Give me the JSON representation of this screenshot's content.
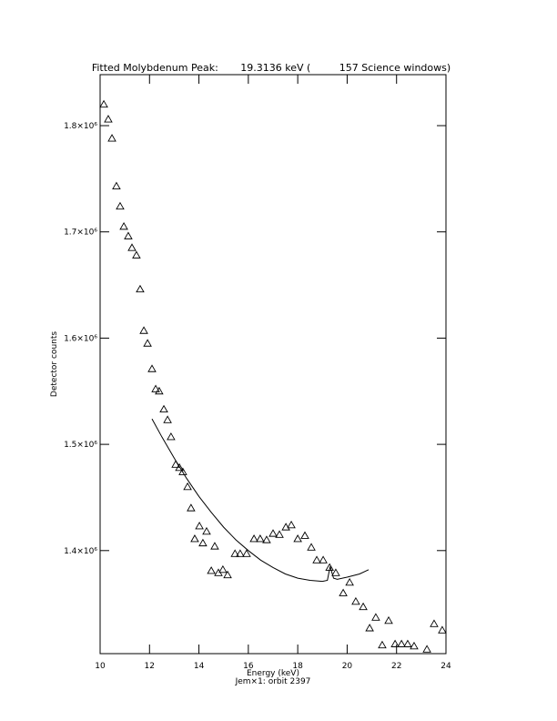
{
  "chart_data": {
    "type": "scatter",
    "title": "Fitted Molybdenum Peak:       19.3136 keV (         157 Science windows)",
    "x_label": "Energy (keV)",
    "subtitle": "Jem×1: orbit 2397",
    "y_label": "Detector counts",
    "xlim": [
      10,
      24
    ],
    "xticks": [
      10,
      12,
      14,
      16,
      18,
      20,
      22,
      24
    ],
    "ylim": [
      1303000,
      1848000
    ],
    "yticks": [
      {
        "value": 1400000,
        "label": "1.4×10⁶"
      },
      {
        "value": 1500000,
        "label": "1.5×10⁶"
      },
      {
        "value": 1600000,
        "label": "1.6×10⁶"
      },
      {
        "value": 1700000,
        "label": "1.7×10⁶"
      },
      {
        "value": 1800000,
        "label": "1.8×10⁶"
      }
    ],
    "grid": false,
    "series": [
      {
        "type": "scatter",
        "color": "#000000",
        "x": [
          10.15,
          10.33,
          10.48,
          10.66,
          10.81,
          10.96,
          11.14,
          11.29,
          11.47,
          11.62,
          11.77,
          11.92,
          12.1,
          12.25,
          12.39,
          12.58,
          12.73,
          12.87,
          13.06,
          13.21,
          13.35,
          13.54,
          13.68,
          13.83,
          14.02,
          14.16,
          14.31,
          14.5,
          14.64,
          14.79,
          14.97,
          15.16,
          15.46,
          15.67,
          15.93,
          16.23,
          16.48,
          16.74,
          17.0,
          17.26,
          17.52,
          17.74,
          18.0,
          18.29,
          18.55,
          18.77,
          19.03,
          19.29,
          19.54,
          19.84,
          20.1,
          20.35,
          20.65,
          20.91,
          21.16,
          21.42,
          21.68,
          21.94,
          22.2,
          22.45,
          22.71,
          23.23,
          23.52,
          23.85
        ],
        "y": [
          1820000,
          1806000,
          1788000,
          1743000,
          1724000,
          1705000,
          1696000,
          1685000,
          1678000,
          1646000,
          1607000,
          1595000,
          1571000,
          1552000,
          1550000,
          1533000,
          1523000,
          1507000,
          1481000,
          1478000,
          1474000,
          1460000,
          1440000,
          1411000,
          1423000,
          1407000,
          1418000,
          1381000,
          1404000,
          1379000,
          1382000,
          1377000,
          1397000,
          1397000,
          1397000,
          1411000,
          1411000,
          1410000,
          1416000,
          1415000,
          1422000,
          1424000,
          1411000,
          1414000,
          1403000,
          1391000,
          1391000,
          1384000,
          1379000,
          1360000,
          1370000,
          1352000,
          1347000,
          1327000,
          1337000,
          1311000,
          1334000,
          1312000,
          1312000,
          1312000,
          1310000,
          1307000,
          1331000,
          1325000
        ]
      },
      {
        "type": "line",
        "color": "#000000",
        "x": [
          12.1,
          12.5,
          13,
          13.5,
          14,
          14.5,
          15,
          15.5,
          16,
          16.5,
          17,
          17.5,
          18,
          18.5,
          19,
          19.2,
          19.31,
          19.45,
          19.6,
          20,
          20.5,
          20.87
        ],
        "y": [
          1524000,
          1507000,
          1487000,
          1468000,
          1451000,
          1436000,
          1422000,
          1410000,
          1400000,
          1391000,
          1384000,
          1378000,
          1374000,
          1372000,
          1371000,
          1372000,
          1385000,
          1374000,
          1373000,
          1375000,
          1378000,
          1382000
        ]
      }
    ]
  }
}
